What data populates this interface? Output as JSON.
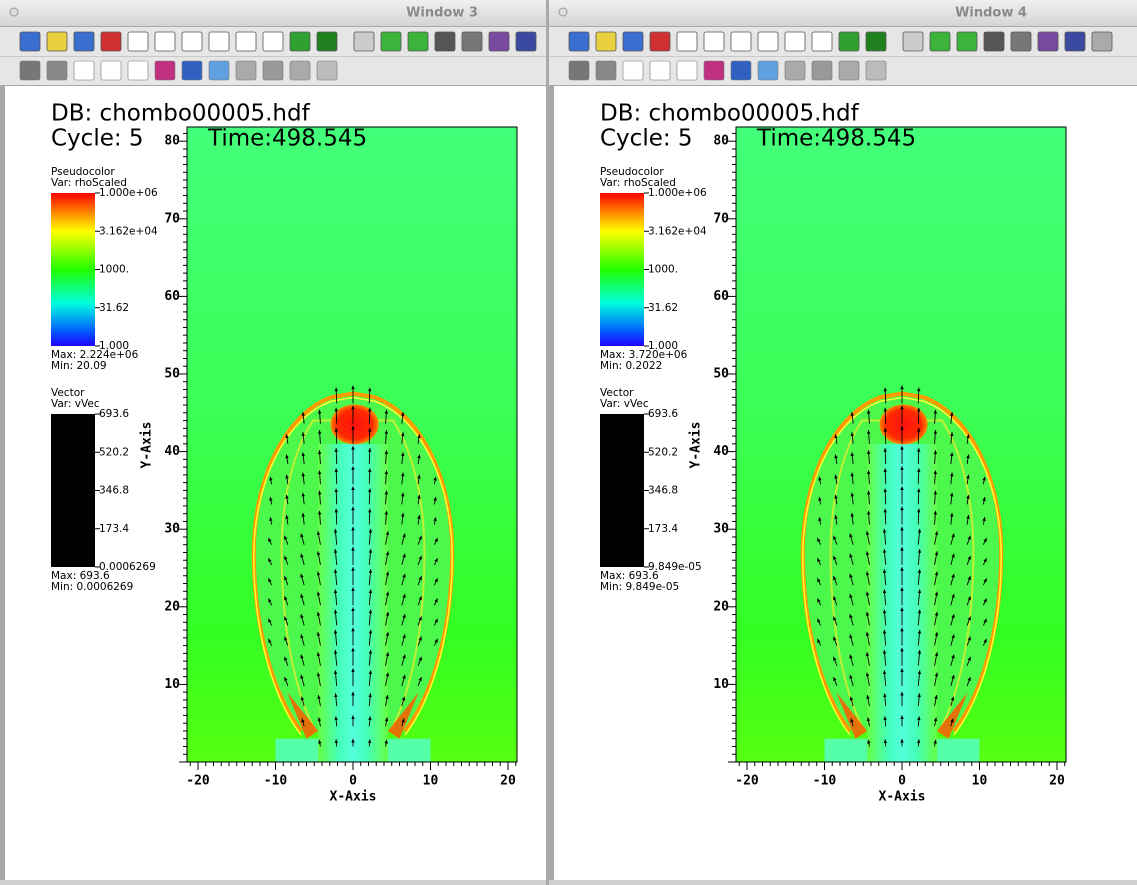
{
  "windows": [
    {
      "title": "Window 3",
      "db": "DB: chombo00005.hdf",
      "cycle": "Cycle: 5",
      "time": "Time:498.545",
      "pseudocolor": {
        "title": "Pseudocolor",
        "var": "Var: rhoScaled",
        "labels": [
          "1.000e+06",
          "3.162e+04",
          "1000.",
          "31.62",
          "1.000"
        ],
        "max": "Max:  2.224e+06",
        "min": "Min:  20.09"
      },
      "vector": {
        "title": "Vector",
        "var": "Var: vVec",
        "labels": [
          "693.6",
          "520.2",
          "346.8",
          "173.4",
          "0.0006269"
        ],
        "max": "Max:  693.6",
        "min": "Min:  0.0006269"
      },
      "x_axis": "X-Axis",
      "y_axis": "Y-Axis",
      "xticks": [
        "-20",
        "-10",
        "0",
        "10",
        "20"
      ],
      "yticks": [
        "10",
        "20",
        "30",
        "40",
        "50",
        "60",
        "70",
        "80"
      ]
    },
    {
      "title": "Window 4",
      "db": "DB: chombo00005.hdf",
      "cycle": "Cycle: 5",
      "time": "Time:498.545",
      "pseudocolor": {
        "title": "Pseudocolor",
        "var": "Var: rhoScaled",
        "labels": [
          "1.000e+06",
          "3.162e+04",
          "1000.",
          "31.62",
          "1.000"
        ],
        "max": "Max:  3.720e+06",
        "min": "Min:  0.2022"
      },
      "vector": {
        "title": "Vector",
        "var": "Var: vVec",
        "labels": [
          "693.6",
          "520.2",
          "346.8",
          "173.4",
          "9.849e-05"
        ],
        "max": "Max:  693.6",
        "min": "Min:  9.849e-05"
      },
      "x_axis": "X-Axis",
      "y_axis": "Y-Axis",
      "xticks": [
        "-20",
        "-10",
        "0",
        "10",
        "20"
      ],
      "yticks": [
        "10",
        "20",
        "30",
        "40",
        "50",
        "60",
        "70",
        "80"
      ]
    }
  ]
}
